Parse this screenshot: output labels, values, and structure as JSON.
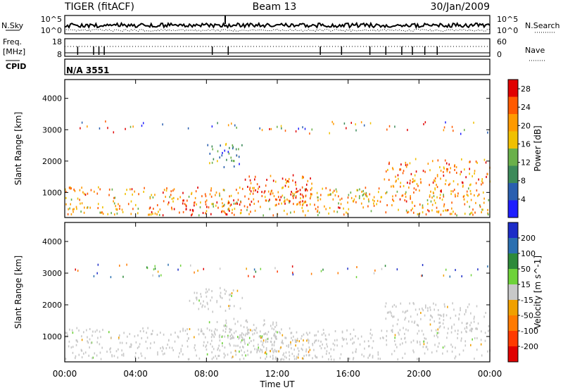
{
  "header": {
    "radar": "TIGER (fitACF)",
    "beam": "Beam 13",
    "date": "30/Jan/2009"
  },
  "noise_panel": {
    "left_label": "N.Sky",
    "right_label": "N.Search",
    "left_top_tick": "10^5",
    "left_bottom_tick": "10^0",
    "right_top_tick": "10^5",
    "right_bottom_tick": "10^0"
  },
  "freq_panel": {
    "left_label_1": "Freq.",
    "left_label_2": "[MHz]",
    "right_label": "Nave",
    "left_ticks": [
      "18",
      "8"
    ],
    "right_ticks": [
      "60",
      "0"
    ]
  },
  "cpid_panel": {
    "label": "CPID",
    "value": "N/A 3551"
  },
  "colors": {
    "power_scale": [
      "#1e1eff",
      "#2a5fb0",
      "#3c8a5a",
      "#6ab04a",
      "#f0c000",
      "#ff9a00",
      "#ff5a00",
      "#e00000"
    ],
    "velocity_scale": [
      "#1c2cc8",
      "#2a6fb0",
      "#2d8a3a",
      "#6ed23a",
      "#c8c8c8",
      "#f0a000",
      "#ff7a00",
      "#ff3a00",
      "#e00000"
    ],
    "background": "#ffffff"
  },
  "chart_data": [
    {
      "type": "heatmap",
      "title": "",
      "quantity": "Power",
      "ylabel": "Slant Range [km]",
      "xlabel": "",
      "ylim": [
        200,
        4600
      ],
      "yticks": [
        "1000",
        "2000",
        "3000",
        "4000"
      ],
      "x_tick_labels": [
        "00:00",
        "04:00",
        "08:00",
        "12:00",
        "16:00",
        "20:00",
        "00:00"
      ],
      "colorbar": {
        "label": "Power [dB]",
        "ticks": [
          "4",
          "8",
          "12",
          "16",
          "20",
          "24",
          "28"
        ],
        "range": [
          0,
          30
        ]
      },
      "scatter_regions_approx": [
        {
          "time_hours": [
            0,
            24
          ],
          "range_km": [
            300,
            1200
          ],
          "value_db": 20
        },
        {
          "time_hours": [
            6,
            10
          ],
          "range_km": [
            300,
            800
          ],
          "value_db": 28
        },
        {
          "time_hours": [
            10,
            14
          ],
          "range_km": [
            600,
            1600
          ],
          "value_db": 24
        },
        {
          "time_hours": [
            8,
            10
          ],
          "range_km": [
            1800,
            2600
          ],
          "value_db": 10
        },
        {
          "time_hours": [
            18,
            24
          ],
          "range_km": [
            1200,
            2100
          ],
          "value_db": 22
        }
      ]
    },
    {
      "type": "heatmap",
      "title": "",
      "quantity": "Velocity",
      "ylabel": "Slant Range [km]",
      "xlabel": "Time UT",
      "ylim": [
        200,
        4600
      ],
      "yticks": [
        "1000",
        "2000",
        "3000",
        "4000"
      ],
      "x_tick_labels": [
        "00:00",
        "04:00",
        "08:00",
        "12:00",
        "16:00",
        "20:00",
        "00:00"
      ],
      "colorbar": {
        "label": "Velocity [m s^-1]",
        "ticks": [
          "200",
          "100",
          "50",
          "15",
          "-15",
          "-50",
          "-100",
          "-200"
        ],
        "range": [
          -250,
          250
        ]
      },
      "scatter_regions_approx": [
        {
          "time_hours": [
            0,
            24
          ],
          "range_km": [
            300,
            1300
          ],
          "value_ms": 0
        },
        {
          "time_hours": [
            8,
            12
          ],
          "range_km": [
            400,
            1600
          ],
          "value_ms": 40
        },
        {
          "time_hours": [
            11,
            14
          ],
          "range_km": [
            300,
            1100
          ],
          "value_ms": -60
        },
        {
          "time_hours": [
            7,
            10
          ],
          "range_km": [
            1800,
            2600
          ],
          "value_ms": 0
        },
        {
          "time_hours": [
            18,
            24
          ],
          "range_km": [
            1200,
            2100
          ],
          "value_ms": -10
        }
      ]
    }
  ]
}
